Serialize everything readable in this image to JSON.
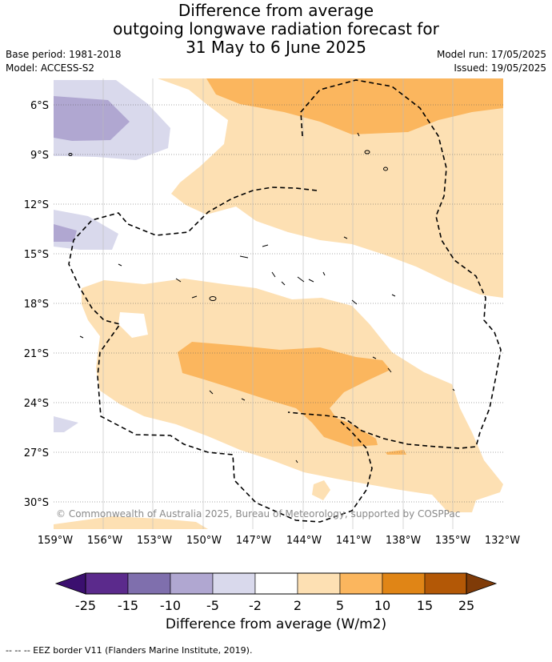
{
  "header": {
    "title_line1": "Difference from average",
    "title_line2": "outgoing longwave radiation forecast for",
    "title_line3": "31 May to 6 June 2025",
    "base_period": "Base period: 1981-2018",
    "model": "Model: ACCESS-S2",
    "model_run": "Model run: 17/05/2025",
    "issued": "Issued: 19/05/2025"
  },
  "map": {
    "lat_labels": [
      "6°S",
      "9°S",
      "12°S",
      "15°S",
      "18°S",
      "21°S",
      "24°S",
      "27°S",
      "30°S"
    ],
    "lon_labels": [
      "159°W",
      "156°W",
      "153°W",
      "150°W",
      "147°W",
      "144°W",
      "141°W",
      "138°W",
      "135°W",
      "132°W"
    ],
    "copyright": "© Commonwealth of Australia 2025, Bureau of Meteorology, supported by COSPPac"
  },
  "colorbar": {
    "ticks": [
      "-25",
      "-15",
      "-10",
      "-5",
      "-2",
      "2",
      "5",
      "10",
      "15",
      "25"
    ],
    "colors": [
      "#3b0f6f",
      "#5b2a8c",
      "#7f6fad",
      "#b0a7d1",
      "#d9d9ec",
      "#ffffff",
      "#fde0b3",
      "#fbb65e",
      "#e08516",
      "#b35806",
      "#7f3b08"
    ],
    "label": "Difference from average (W/m2)"
  },
  "footer": {
    "legend": "-- -- -- EEZ border V11 (Flanders Marine Institute, 2019)."
  }
}
